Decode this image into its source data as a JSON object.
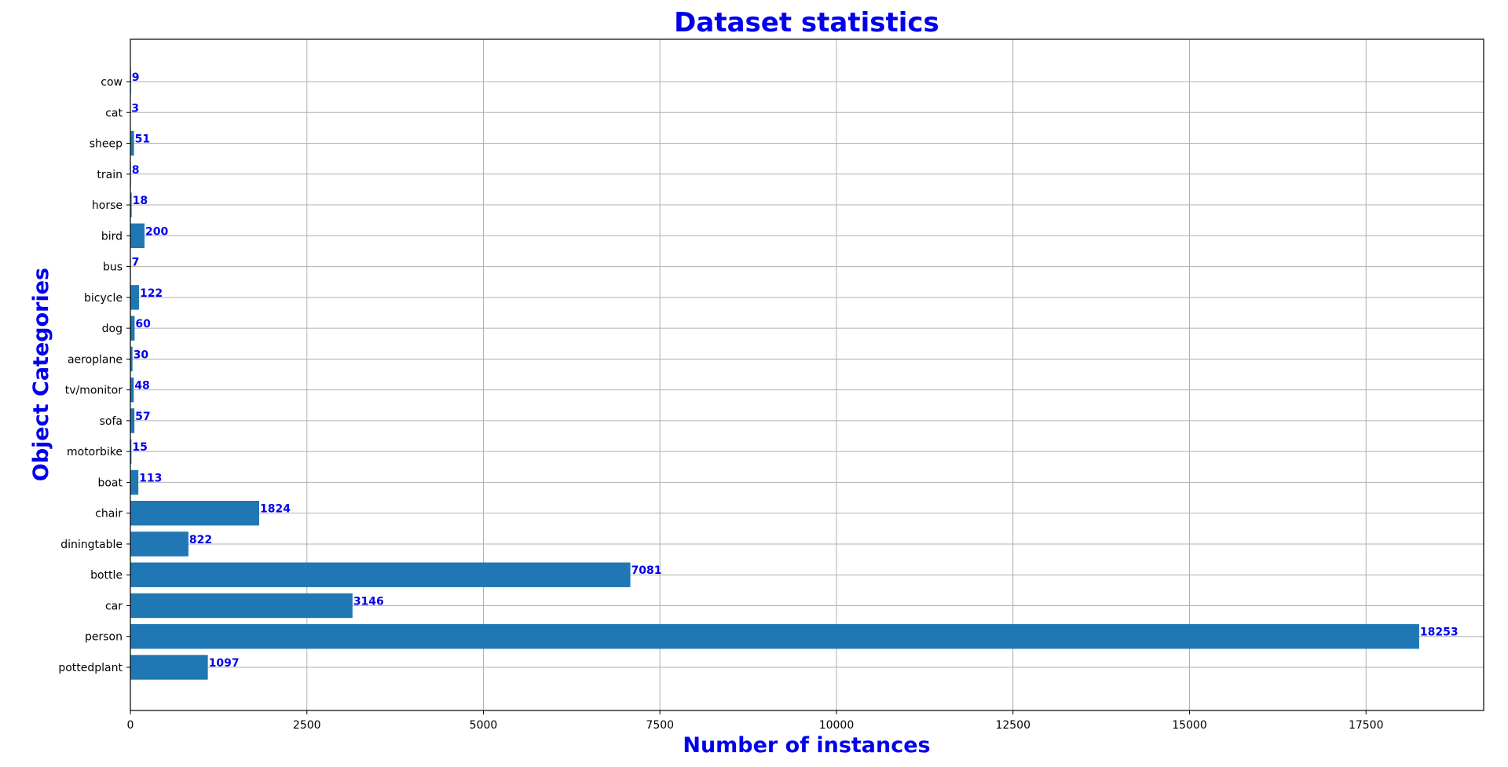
{
  "chart_data": {
    "type": "bar",
    "orientation": "horizontal",
    "title": "Dataset statistics",
    "xlabel": "Number of instances",
    "ylabel": "Object Categories",
    "categories": [
      "pottedplant",
      "person",
      "car",
      "bottle",
      "diningtable",
      "chair",
      "boat",
      "motorbike",
      "sofa",
      "tv/monitor",
      "aeroplane",
      "dog",
      "bicycle",
      "bus",
      "bird",
      "horse",
      "train",
      "sheep",
      "cat",
      "cow"
    ],
    "values": [
      1097,
      18253,
      3146,
      7081,
      822,
      1824,
      113,
      15,
      57,
      48,
      30,
      60,
      122,
      7,
      200,
      18,
      8,
      51,
      3,
      9
    ],
    "value_labels": [
      "1097",
      "18253",
      "3146",
      "7081",
      "822",
      "1824",
      "113",
      "15",
      "57",
      "48",
      "30",
      "60",
      "122",
      "7",
      "200",
      "18",
      "8",
      "51",
      "3",
      "9"
    ],
    "x_ticks": [
      0,
      2500,
      5000,
      7500,
      10000,
      12500,
      15000,
      17500
    ],
    "x_tick_labels": [
      "0",
      "2500",
      "5000",
      "7500",
      "10000",
      "12500",
      "15000",
      "17500"
    ],
    "xlim": [
      0,
      19166
    ],
    "grid": true,
    "colors": {
      "bar": "#1f77b4",
      "value_label": "#0000ee",
      "title": "#0000ee",
      "axis_labels": "#0000ee",
      "grid": "#b0b0b0"
    }
  }
}
